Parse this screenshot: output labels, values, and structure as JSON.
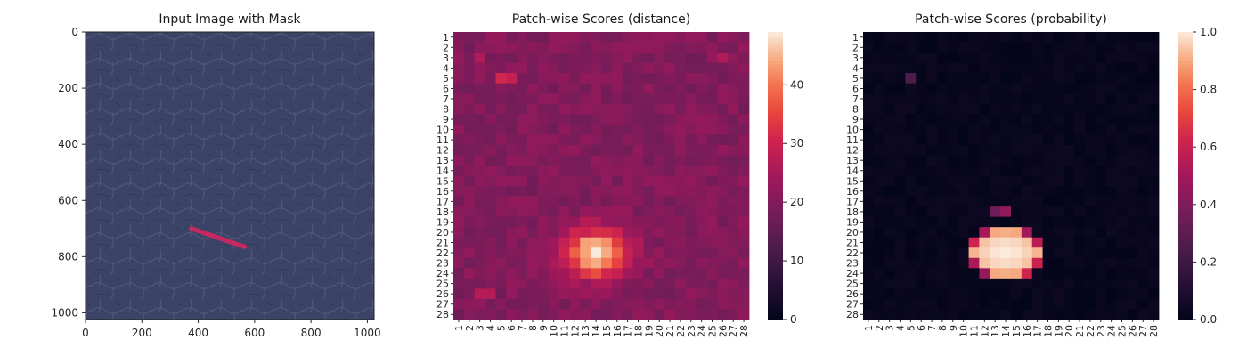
{
  "colors": {
    "mask": "#e0245e",
    "image_bg": "#3b4466",
    "axis": "#262626"
  },
  "chart_data": [
    {
      "type": "image",
      "title": "Input Image with Mask",
      "xlim": [
        0,
        1024
      ],
      "ylim": [
        1024,
        0
      ],
      "x_ticks": [
        "0",
        "200",
        "400",
        "600",
        "800",
        "1000"
      ],
      "y_ticks": [
        "0",
        "200",
        "400",
        "600",
        "800",
        "1000"
      ],
      "mask_segment": {
        "x": [
          375,
          565
        ],
        "y": [
          700,
          765
        ]
      }
    },
    {
      "type": "heatmap",
      "title": "Patch-wise Scores (distance)",
      "rows": 28,
      "cols": 28,
      "x_ticks": [
        "1",
        "2",
        "3",
        "4",
        "5",
        "6",
        "7",
        "8",
        "9",
        "10",
        "11",
        "12",
        "13",
        "14",
        "15",
        "16",
        "17",
        "18",
        "19",
        "20",
        "21",
        "22",
        "23",
        "24",
        "25",
        "26",
        "27",
        "28"
      ],
      "y_ticks": [
        "1",
        "2",
        "3",
        "4",
        "5",
        "6",
        "7",
        "8",
        "9",
        "10",
        "11",
        "12",
        "13",
        "14",
        "15",
        "16",
        "17",
        "18",
        "19",
        "20",
        "21",
        "22",
        "23",
        "24",
        "25",
        "26",
        "27",
        "28"
      ],
      "colorbar_ticks": [
        "0",
        "10",
        "20",
        "30",
        "40"
      ],
      "vmin": 0,
      "vmax": 49,
      "background_level": 20,
      "hotspot": {
        "center_row": 22,
        "center_col": 14,
        "peak": 49
      },
      "highlights": [
        {
          "row": 5,
          "col": 5,
          "value": 31
        },
        {
          "row": 5,
          "col": 6,
          "value": 29
        },
        {
          "row": 3,
          "col": 3,
          "value": 26
        },
        {
          "row": 26,
          "col": 3,
          "value": 27
        },
        {
          "row": 26,
          "col": 4,
          "value": 27
        },
        {
          "row": 3,
          "col": 26,
          "value": 26
        }
      ]
    },
    {
      "type": "heatmap",
      "title": "Patch-wise Scores (probability)",
      "rows": 28,
      "cols": 28,
      "x_ticks": [
        "1",
        "2",
        "3",
        "4",
        "5",
        "6",
        "7",
        "8",
        "9",
        "10",
        "11",
        "12",
        "13",
        "14",
        "15",
        "16",
        "17",
        "18",
        "19",
        "20",
        "21",
        "22",
        "23",
        "24",
        "25",
        "26",
        "27",
        "28"
      ],
      "y_ticks": [
        "1",
        "2",
        "3",
        "4",
        "5",
        "6",
        "7",
        "8",
        "9",
        "10",
        "11",
        "12",
        "13",
        "14",
        "15",
        "16",
        "17",
        "18",
        "19",
        "20",
        "21",
        "22",
        "23",
        "24",
        "25",
        "26",
        "27",
        "28"
      ],
      "colorbar_ticks": [
        "0.0",
        "0.2",
        "0.4",
        "0.6",
        "0.8",
        "1.0"
      ],
      "vmin": 0.0,
      "vmax": 1.0,
      "hotspot": {
        "center_row": 22,
        "center_col": 14,
        "peak": 1.0
      },
      "highlights": [
        {
          "row": 5,
          "col": 5,
          "value": 0.25
        },
        {
          "row": 18,
          "col": 13,
          "value": 0.35
        },
        {
          "row": 18,
          "col": 14,
          "value": 0.45
        }
      ]
    }
  ]
}
